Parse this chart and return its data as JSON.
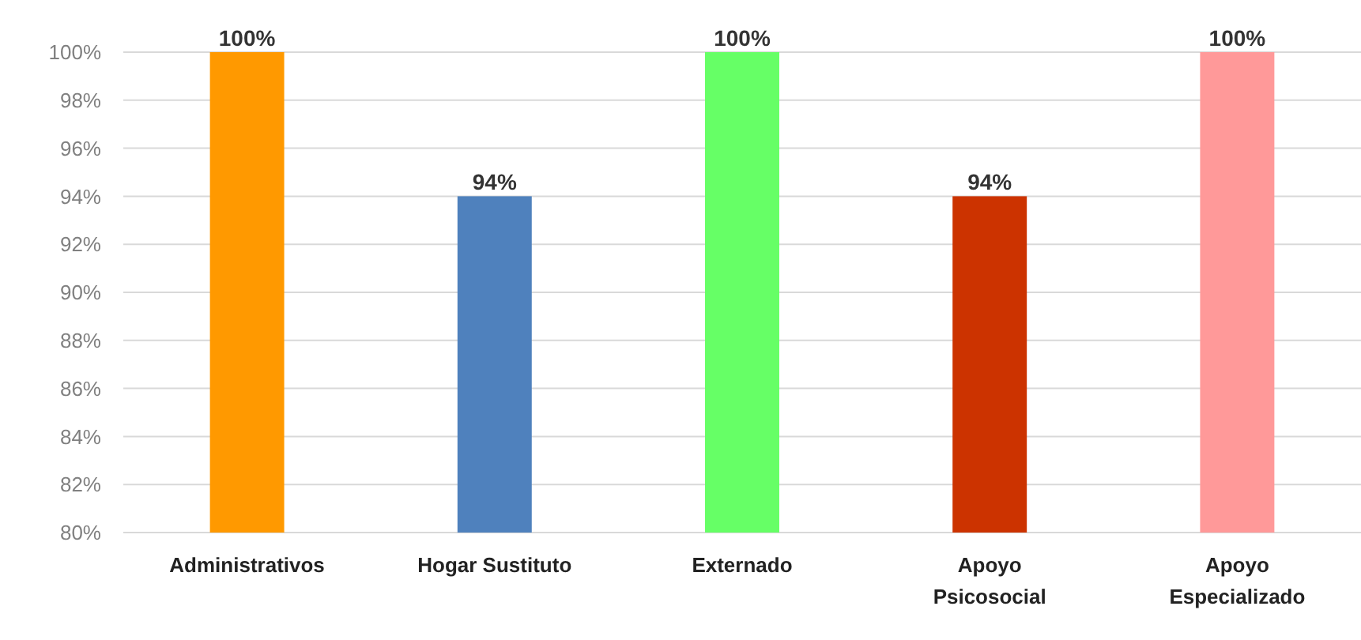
{
  "chart_data": {
    "type": "bar",
    "categories": [
      "Administrativos",
      "Hogar Sustituto",
      "Externado",
      "Apoyo\nPsicosocial",
      "Apoyo\nEspecializado"
    ],
    "values": [
      100,
      94,
      100,
      94,
      100
    ],
    "colors": [
      "#ff9900",
      "#4f81bd",
      "#66ff66",
      "#cc3300",
      "#ff9999"
    ],
    "value_labels": [
      "100%",
      "94%",
      "100%",
      "94%",
      "100%"
    ],
    "ylim": [
      80,
      100
    ],
    "yticks": [
      {
        "value": 80,
        "label": "80%"
      },
      {
        "value": 82,
        "label": "82%"
      },
      {
        "value": 84,
        "label": "84%"
      },
      {
        "value": 86,
        "label": "86%"
      },
      {
        "value": 88,
        "label": "88%"
      },
      {
        "value": 90,
        "label": "90%"
      },
      {
        "value": 92,
        "label": "92%"
      },
      {
        "value": 94,
        "label": "94%"
      },
      {
        "value": 96,
        "label": "96%"
      },
      {
        "value": 98,
        "label": "98%"
      },
      {
        "value": 100,
        "label": "100%"
      }
    ],
    "grid": "y"
  }
}
